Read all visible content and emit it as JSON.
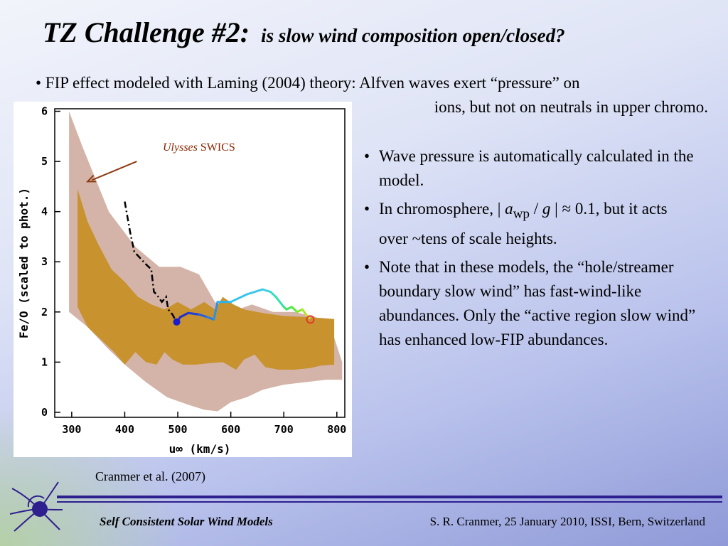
{
  "slide": {
    "title_main": "TZ Challenge #2:",
    "title_sub": "is slow wind composition open/closed?",
    "fip_bullet_line1": "• FIP effect modeled with Laming (2004) theory: Alfven waves exert “pressure” on",
    "fip_bullet_line2": "ions, but not on neutrals in upper chromo.",
    "bullet1": "Wave pressure is automatically calculated in the model.",
    "bullet2_a": "In chromosphere, | ",
    "bullet2_avar": "a",
    "bullet2_sub": "wp",
    "bullet2_b": " / ",
    "bullet2_g": "g",
    "bullet2_c": " | ≈ 0.1, but it acts over ~tens of scale heights.",
    "bullet3": "Note that in these models, the “hole/streamer boundary slow wind” has fast-wind-like abundances.  Only the “active region slow wind” has enhanced low-FIP abundances.",
    "bullet_symbol": "•",
    "citation": "Cranmer et al. (2007)",
    "footer_left": "Self Consistent Solar Wind Models",
    "footer_right": "S. R. Cranmer,  25 January 2010,  ISSI, Bern, Switzerland",
    "logo_icon": "solar-wind-swirl-icon"
  },
  "chart_data": {
    "type": "area",
    "xlabel": "u∞ (km/s)",
    "ylabel": "Fe/O (scaled to phot.)",
    "xlim": [
      268,
      815
    ],
    "ylim": [
      -0.1,
      6.05
    ],
    "xticks": [
      300,
      400,
      500,
      600,
      700,
      800
    ],
    "yticks": [
      0,
      1,
      2,
      3,
      4,
      5,
      6
    ],
    "annotation": {
      "italic": "Ulysses",
      "text": " SWICS"
    },
    "annotation_arrow_target": [
      330,
      4.6
    ],
    "annotation_arrow_start": [
      420,
      5.0
    ],
    "colors": {
      "outer_band": "#d4b4a8",
      "inner_band": "#c8922f",
      "dashed_line": "#000000",
      "model_start": "#1a1acf",
      "model_end_marker": "#e23a2a"
    },
    "series": [
      {
        "name": "Ulysses SWICS range",
        "style": "outer_band",
        "upper": [
          [
            295,
            6.0
          ],
          [
            320,
            5.3
          ],
          [
            370,
            4.0
          ],
          [
            420,
            3.3
          ],
          [
            465,
            2.9
          ],
          [
            505,
            2.9
          ],
          [
            540,
            2.75
          ],
          [
            570,
            2.2
          ],
          [
            600,
            2.0
          ],
          [
            640,
            2.15
          ],
          [
            680,
            2.0
          ],
          [
            720,
            2.0
          ],
          [
            760,
            1.9
          ],
          [
            790,
            1.65
          ],
          [
            810,
            1.0
          ]
        ],
        "lower": [
          [
            295,
            2.0
          ],
          [
            330,
            1.7
          ],
          [
            370,
            1.25
          ],
          [
            400,
            0.95
          ],
          [
            440,
            0.6
          ],
          [
            480,
            0.3
          ],
          [
            520,
            0.15
          ],
          [
            550,
            0.05
          ],
          [
            575,
            0.02
          ],
          [
            600,
            0.2
          ],
          [
            630,
            0.3
          ],
          [
            660,
            0.45
          ],
          [
            700,
            0.55
          ],
          [
            740,
            0.6
          ],
          [
            780,
            0.65
          ],
          [
            810,
            0.65
          ]
        ]
      },
      {
        "name": "Ulysses SWICS core",
        "style": "inner_band",
        "upper": [
          [
            311,
            4.45
          ],
          [
            330,
            3.8
          ],
          [
            350,
            3.35
          ],
          [
            375,
            2.85
          ],
          [
            400,
            2.6
          ],
          [
            425,
            2.3
          ],
          [
            450,
            2.15
          ],
          [
            475,
            2.05
          ],
          [
            500,
            2.2
          ],
          [
            525,
            2.05
          ],
          [
            550,
            2.2
          ],
          [
            570,
            2.05
          ],
          [
            585,
            2.3
          ],
          [
            605,
            2.15
          ],
          [
            625,
            2.05
          ],
          [
            660,
            1.98
          ],
          [
            700,
            1.92
          ],
          [
            740,
            1.9
          ],
          [
            770,
            1.88
          ],
          [
            795,
            1.86
          ]
        ],
        "lower": [
          [
            311,
            2.1
          ],
          [
            330,
            1.7
          ],
          [
            355,
            1.45
          ],
          [
            380,
            1.2
          ],
          [
            400,
            0.95
          ],
          [
            420,
            1.2
          ],
          [
            440,
            1.0
          ],
          [
            460,
            0.95
          ],
          [
            475,
            1.2
          ],
          [
            490,
            1.05
          ],
          [
            510,
            0.95
          ],
          [
            535,
            0.95
          ],
          [
            560,
            0.98
          ],
          [
            585,
            1.0
          ],
          [
            610,
            0.85
          ],
          [
            625,
            1.05
          ],
          [
            645,
            1.15
          ],
          [
            665,
            0.9
          ],
          [
            690,
            0.85
          ],
          [
            720,
            0.85
          ],
          [
            750,
            0.88
          ],
          [
            770,
            0.93
          ],
          [
            795,
            0.95
          ]
        ]
      },
      {
        "name": "dash-dot",
        "style": "dashed_line",
        "points": [
          [
            400,
            4.2
          ],
          [
            410,
            3.6
          ],
          [
            418,
            3.2
          ],
          [
            440,
            2.95
          ],
          [
            450,
            2.85
          ],
          [
            455,
            2.4
          ],
          [
            460,
            2.35
          ],
          [
            470,
            2.2
          ],
          [
            478,
            2.3
          ],
          [
            482,
            2.05
          ],
          [
            490,
            1.95
          ],
          [
            495,
            1.85
          ]
        ]
      },
      {
        "name": "model track",
        "style": "gradient",
        "points": [
          [
            498,
            1.8
          ],
          [
            505,
            1.9
          ],
          [
            520,
            1.98
          ],
          [
            540,
            1.95
          ],
          [
            555,
            1.9
          ],
          [
            568,
            1.85
          ],
          [
            575,
            2.2
          ],
          [
            600,
            2.2
          ],
          [
            630,
            2.35
          ],
          [
            660,
            2.45
          ],
          [
            675,
            2.4
          ],
          [
            685,
            2.3
          ],
          [
            700,
            2.1
          ],
          [
            705,
            2.05
          ],
          [
            715,
            2.1
          ],
          [
            725,
            2.0
          ],
          [
            735,
            2.05
          ],
          [
            742,
            1.95
          ],
          [
            748,
            1.88
          ]
        ],
        "colors": [
          "#1f2bcf",
          "#1f2bcf",
          "#1f3ed8",
          "#2b5ce0",
          "#2a78e0",
          "#2a90e8",
          "#2bb3f0",
          "#38c2ee",
          "#3fc6ea",
          "#3ed0e0",
          "#38dcc8",
          "#30e4a8",
          "#3be87a",
          "#42e85a",
          "#5ee83c",
          "#84ea2e",
          "#a8e82a",
          "#c8e232",
          "#f0b040"
        ],
        "end_marker": [
          750,
          1.85
        ]
      }
    ]
  }
}
